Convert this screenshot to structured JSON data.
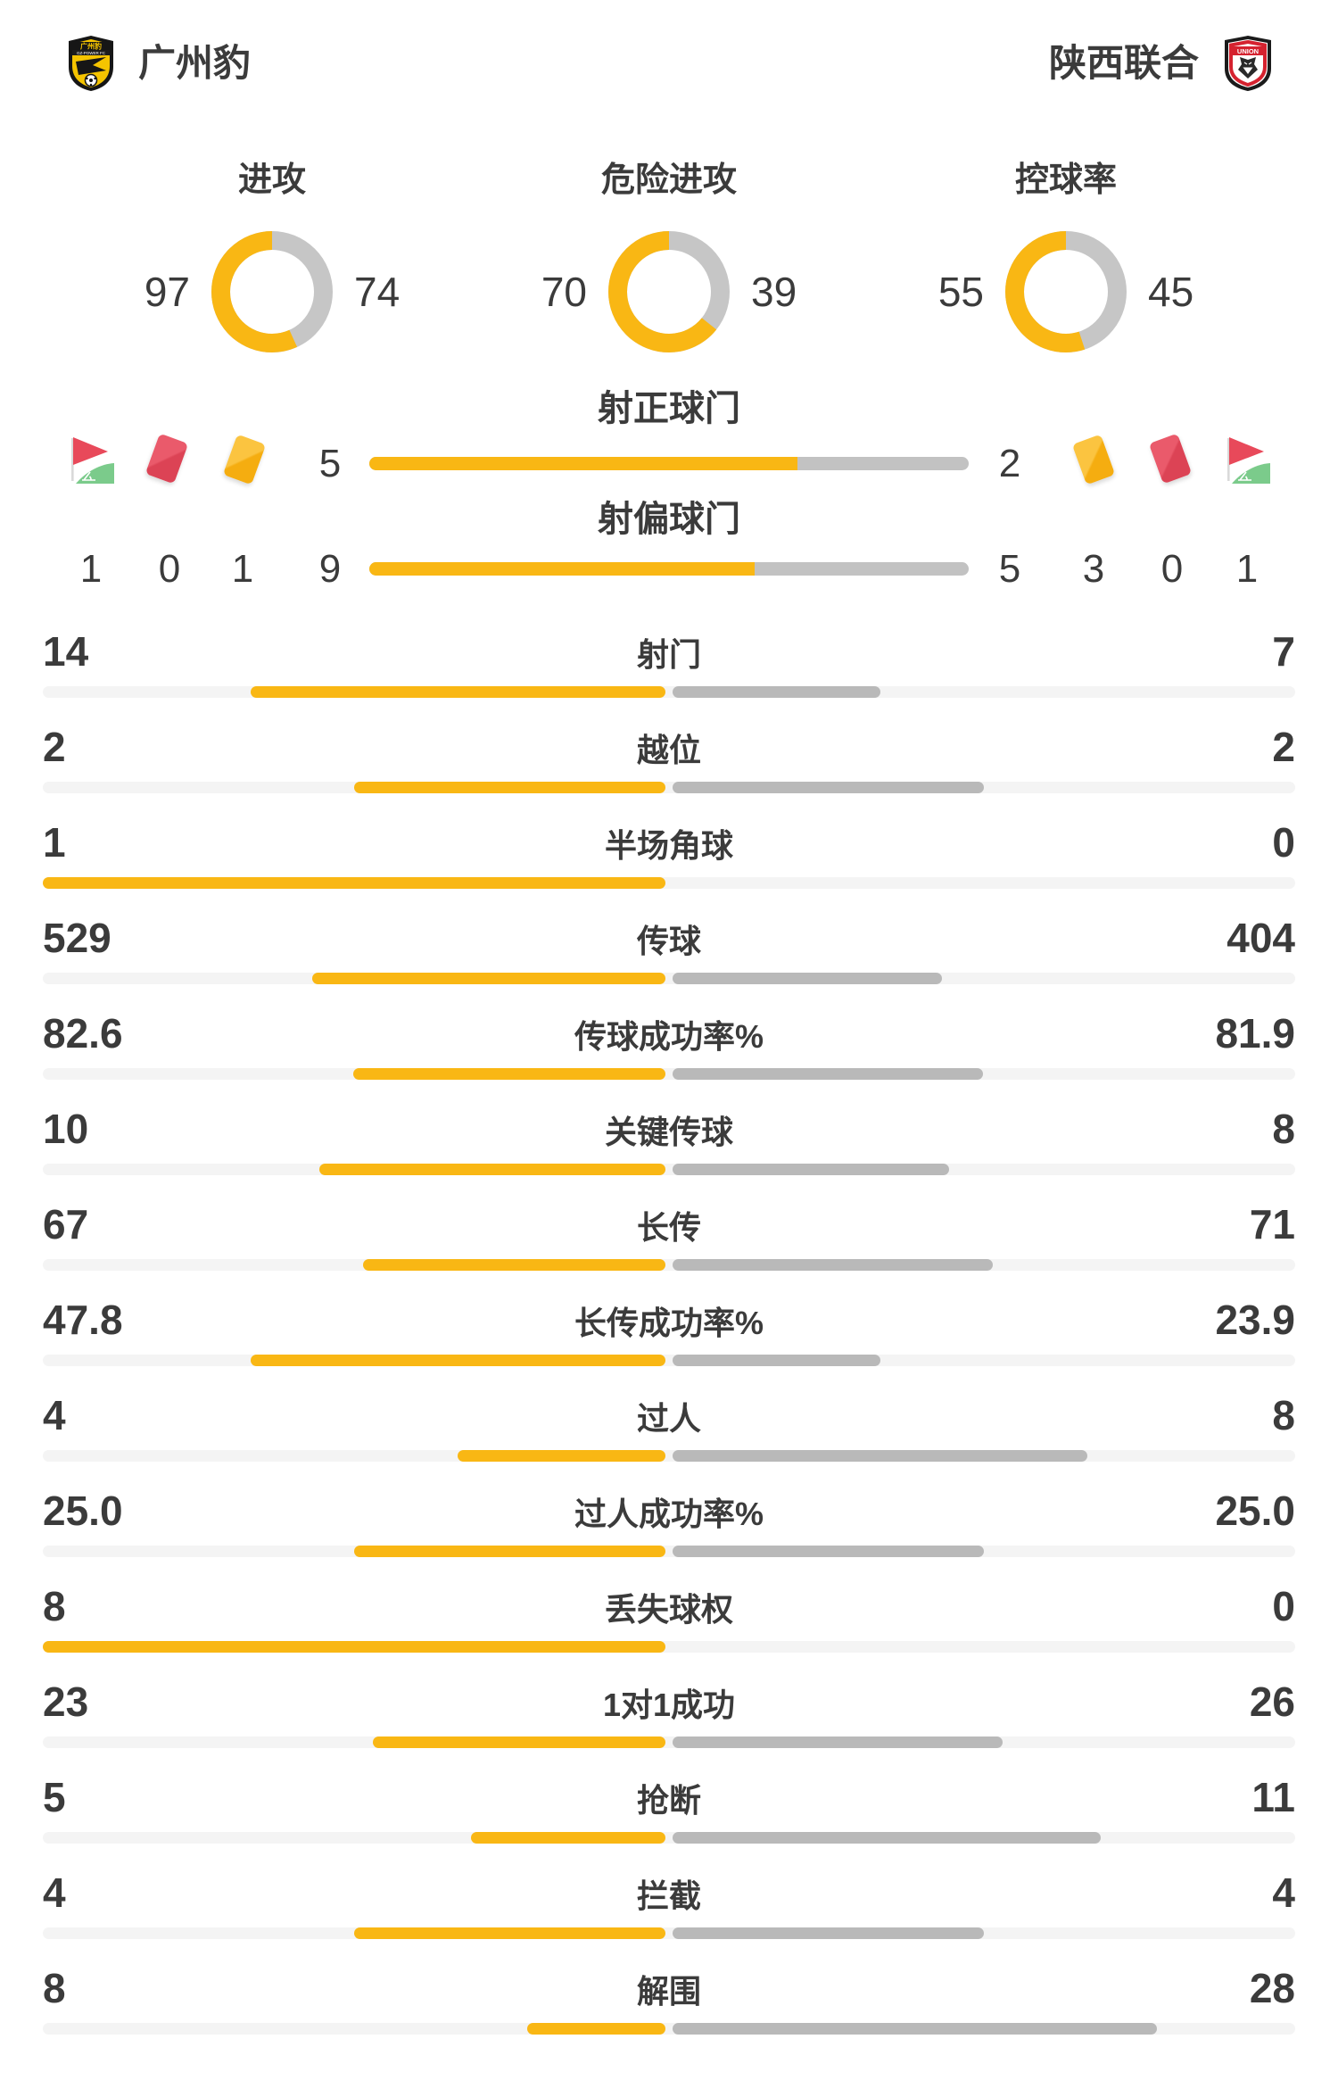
{
  "header": {
    "home_name": "广州豹",
    "away_name": "陕西联合",
    "home_logo": "gz-power-fc-badge",
    "away_logo": "shaanxi-union-badge",
    "home_logo_text": "GZ-POWER FC",
    "away_logo_text": "UNION"
  },
  "donuts": [
    {
      "label": "进攻",
      "home": "97",
      "away": "74"
    },
    {
      "label": "危险进攻",
      "home": "70",
      "away": "39"
    },
    {
      "label": "控球率",
      "home": "55",
      "away": "45"
    }
  ],
  "discipline": {
    "home": {
      "corner": "1",
      "red": "0",
      "yellow": "1"
    },
    "away": {
      "yellow": "3",
      "red": "0",
      "corner": "1"
    }
  },
  "top_bars": [
    {
      "label": "射正球门",
      "home": "5",
      "away": "2"
    },
    {
      "label": "射偏球门",
      "home": "9",
      "away": "5"
    }
  ],
  "stats": [
    {
      "label": "射门",
      "home": "14",
      "away": "7"
    },
    {
      "label": "越位",
      "home": "2",
      "away": "2"
    },
    {
      "label": "半场角球",
      "home": "1",
      "away": "0"
    },
    {
      "label": "传球",
      "home": "529",
      "away": "404"
    },
    {
      "label": "传球成功率%",
      "home": "82.6",
      "away": "81.9"
    },
    {
      "label": "关键传球",
      "home": "10",
      "away": "8"
    },
    {
      "label": "长传",
      "home": "67",
      "away": "71"
    },
    {
      "label": "长传成功率%",
      "home": "47.8",
      "away": "23.9"
    },
    {
      "label": "过人",
      "home": "4",
      "away": "8"
    },
    {
      "label": "过人成功率%",
      "home": "25.0",
      "away": "25.0"
    },
    {
      "label": "丢失球权",
      "home": "8",
      "away": "0"
    },
    {
      "label": "1对1成功",
      "home": "23",
      "away": "26"
    },
    {
      "label": "抢断",
      "home": "5",
      "away": "11"
    },
    {
      "label": "拦截",
      "home": "4",
      "away": "4"
    },
    {
      "label": "解围",
      "home": "8",
      "away": "28"
    }
  ],
  "colors": {
    "home_accent": "#F9B714",
    "away_gray": "#B9B9B9",
    "donut_gray": "#C6C6C6",
    "track": "#F4F4F4",
    "text": "#3B3B3B",
    "card_red": "#DC4355",
    "card_yellow": "#F5AD10",
    "flag_green": "#7BCB8B"
  },
  "chart_data": [
    {
      "type": "pie",
      "variant": "donut",
      "title": "进攻",
      "categories": [
        "广州豹",
        "陕西联合"
      ],
      "values": [
        97,
        74
      ]
    },
    {
      "type": "pie",
      "variant": "donut",
      "title": "危险进攻",
      "categories": [
        "广州豹",
        "陕西联合"
      ],
      "values": [
        70,
        39
      ]
    },
    {
      "type": "pie",
      "variant": "donut",
      "title": "控球率",
      "categories": [
        "广州豹",
        "陕西联合"
      ],
      "values": [
        55,
        45
      ]
    },
    {
      "type": "bar",
      "title": "射正球门",
      "categories": [
        "广州豹",
        "陕西联合"
      ],
      "values": [
        5,
        2
      ]
    },
    {
      "type": "bar",
      "title": "射偏球门",
      "categories": [
        "广州豹",
        "陕西联合"
      ],
      "values": [
        9,
        5
      ]
    },
    {
      "type": "bar",
      "title": "角球/红牌/黄牌",
      "categories": [
        "角球",
        "红牌",
        "黄牌"
      ],
      "series": [
        {
          "name": "广州豹",
          "values": [
            1,
            0,
            1
          ]
        },
        {
          "name": "陕西联合",
          "values": [
            1,
            0,
            3
          ]
        }
      ]
    },
    {
      "type": "bar",
      "title": "比赛统计",
      "categories": [
        "射门",
        "越位",
        "半场角球",
        "传球",
        "传球成功率%",
        "关键传球",
        "长传",
        "长传成功率%",
        "过人",
        "过人成功率%",
        "丢失球权",
        "1对1成功",
        "抢断",
        "拦截",
        "解围"
      ],
      "series": [
        {
          "name": "广州豹",
          "values": [
            14,
            2,
            1,
            529,
            82.6,
            10,
            67,
            47.8,
            4,
            25.0,
            8,
            23,
            5,
            4,
            8
          ]
        },
        {
          "name": "陕西联合",
          "values": [
            7,
            2,
            0,
            404,
            81.9,
            8,
            71,
            23.9,
            8,
            25.0,
            0,
            26,
            11,
            4,
            28
          ]
        }
      ],
      "legend_position": "top",
      "grid": false
    }
  ]
}
